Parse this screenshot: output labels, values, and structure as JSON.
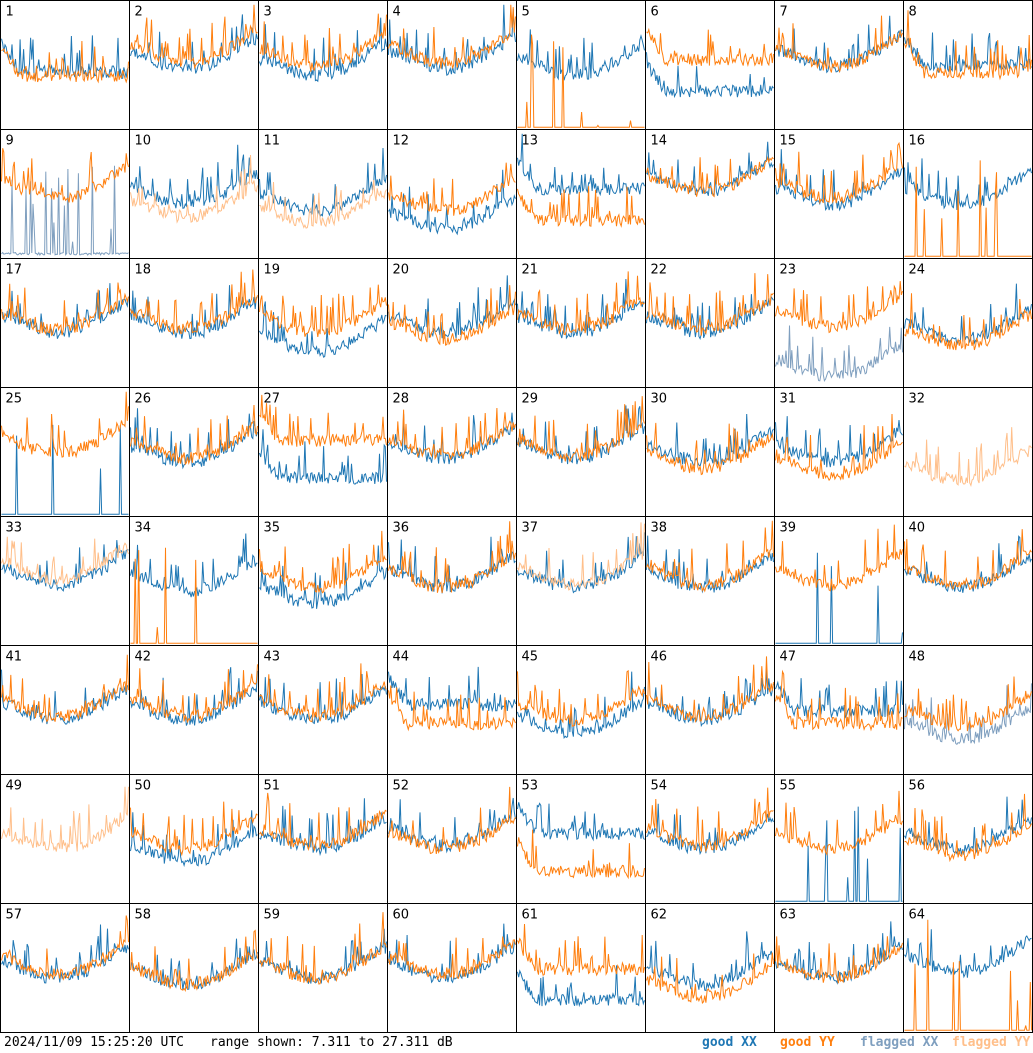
{
  "chart_data": {
    "type": "line",
    "description_units": "dB",
    "range": {
      "min": 7.311,
      "max": 27.311
    },
    "grid": {
      "rows": 8,
      "cols": 8
    },
    "series_colors": {
      "good_xx": "#1f77b4",
      "good_yy": "#ff7f0e",
      "flagged_xx": "#7f9fbf",
      "flagged_yy": "#ffbf8a"
    },
    "panels": [
      {
        "id": "1",
        "xx": "good",
        "yy": "good",
        "xx_level": 0.45,
        "yy_level": 0.42,
        "xx_dip": 0.1,
        "yy_dip": 0.1,
        "shape": "flat"
      },
      {
        "id": "2",
        "xx": "good",
        "yy": "good",
        "xx_level": 0.6,
        "yy_level": 0.65,
        "shape": "u"
      },
      {
        "id": "3",
        "xx": "good",
        "yy": "good",
        "xx_level": 0.55,
        "yy_level": 0.62,
        "shape": "u"
      },
      {
        "id": "4",
        "xx": "good",
        "yy": "good",
        "xx_level": 0.6,
        "yy_level": 0.65,
        "shape": "u"
      },
      {
        "id": "5",
        "xx": "good",
        "yy": "dropout",
        "xx_level": 0.55,
        "yy_level": 0.02,
        "shape": "u"
      },
      {
        "id": "6",
        "xx": "good",
        "yy": "good",
        "xx_level": 0.3,
        "yy_level": 0.55,
        "shape": "flat"
      },
      {
        "id": "7",
        "xx": "good",
        "yy": "good",
        "xx_level": 0.62,
        "yy_level": 0.62,
        "shape": "u"
      },
      {
        "id": "8",
        "xx": "good",
        "yy": "good",
        "xx_level": 0.5,
        "yy_level": 0.45,
        "shape": "flat"
      },
      {
        "id": "9",
        "xx": "flagged",
        "yy": "good",
        "xx_level": 0.03,
        "yy_level": 0.6,
        "shape": "u"
      },
      {
        "id": "10",
        "xx": "good",
        "yy": "flagged",
        "xx_level": 0.55,
        "yy_level": 0.45,
        "shape": "u"
      },
      {
        "id": "11",
        "xx": "good",
        "yy": "flagged",
        "xx_level": 0.5,
        "yy_level": 0.4,
        "shape": "u"
      },
      {
        "id": "12",
        "xx": "good",
        "yy": "good",
        "xx_level": 0.35,
        "yy_level": 0.5,
        "shape": "u"
      },
      {
        "id": "13",
        "xx": "good",
        "yy": "good",
        "xx_level": 0.55,
        "yy_level": 0.3,
        "shape": "flat"
      },
      {
        "id": "14",
        "xx": "good",
        "yy": "good",
        "xx_level": 0.65,
        "yy_level": 0.65,
        "shape": "u"
      },
      {
        "id": "15",
        "xx": "good",
        "yy": "good",
        "xx_level": 0.55,
        "yy_level": 0.6,
        "shape": "u"
      },
      {
        "id": "16",
        "xx": "good",
        "yy": "dropout",
        "xx_level": 0.55,
        "yy_level": 0.02,
        "shape": "u"
      },
      {
        "id": "17",
        "xx": "good",
        "yy": "good",
        "xx_level": 0.55,
        "yy_level": 0.58,
        "shape": "u"
      },
      {
        "id": "18",
        "xx": "good",
        "yy": "good",
        "xx_level": 0.55,
        "yy_level": 0.58,
        "shape": "u"
      },
      {
        "id": "19",
        "xx": "good",
        "yy": "good",
        "xx_level": 0.4,
        "yy_level": 0.55,
        "shape": "u"
      },
      {
        "id": "20",
        "xx": "good",
        "yy": "good",
        "xx_level": 0.55,
        "yy_level": 0.5,
        "shape": "u"
      },
      {
        "id": "21",
        "xx": "good",
        "yy": "good",
        "xx_level": 0.55,
        "yy_level": 0.58,
        "shape": "u"
      },
      {
        "id": "22",
        "xx": "good",
        "yy": "good",
        "xx_level": 0.55,
        "yy_level": 0.58,
        "shape": "u"
      },
      {
        "id": "23",
        "xx": "flagged",
        "yy": "good",
        "xx_level": 0.2,
        "yy_level": 0.6,
        "shape": "u"
      },
      {
        "id": "24",
        "xx": "good",
        "yy": "good",
        "xx_level": 0.5,
        "yy_level": 0.45,
        "shape": "u"
      },
      {
        "id": "25",
        "xx": "dropout",
        "yy": "good",
        "xx_level": 0.02,
        "yy_level": 0.62,
        "shape": "u"
      },
      {
        "id": "26",
        "xx": "good",
        "yy": "good",
        "xx_level": 0.55,
        "yy_level": 0.58,
        "shape": "u"
      },
      {
        "id": "27",
        "xx": "good",
        "yy": "good",
        "xx_level": 0.3,
        "yy_level": 0.6,
        "shape": "flat"
      },
      {
        "id": "28",
        "xx": "good",
        "yy": "good",
        "xx_level": 0.58,
        "yy_level": 0.6,
        "shape": "u"
      },
      {
        "id": "29",
        "xx": "good",
        "yy": "good",
        "xx_level": 0.58,
        "yy_level": 0.6,
        "shape": "u"
      },
      {
        "id": "30",
        "xx": "good",
        "yy": "good",
        "xx_level": 0.55,
        "yy_level": 0.5,
        "shape": "u"
      },
      {
        "id": "31",
        "xx": "good",
        "yy": "good",
        "xx_level": 0.55,
        "yy_level": 0.45,
        "shape": "u"
      },
      {
        "id": "32",
        "xx": "none",
        "yy": "flagged",
        "xx_level": 0,
        "yy_level": 0.4,
        "shape": "u"
      },
      {
        "id": "33",
        "xx": "good",
        "yy": "flagged",
        "xx_level": 0.6,
        "yy_level": 0.65,
        "shape": "u"
      },
      {
        "id": "34",
        "xx": "good",
        "yy": "dropout",
        "xx_level": 0.55,
        "yy_level": 0.02,
        "shape": "u"
      },
      {
        "id": "35",
        "xx": "good",
        "yy": "good",
        "xx_level": 0.45,
        "yy_level": 0.58,
        "shape": "u"
      },
      {
        "id": "36",
        "xx": "good",
        "yy": "good",
        "xx_level": 0.58,
        "yy_level": 0.58,
        "shape": "u"
      },
      {
        "id": "37",
        "xx": "good",
        "yy": "flagged",
        "xx_level": 0.58,
        "yy_level": 0.6,
        "shape": "u"
      },
      {
        "id": "38",
        "xx": "good",
        "yy": "good",
        "xx_level": 0.58,
        "yy_level": 0.6,
        "shape": "u"
      },
      {
        "id": "39",
        "xx": "dropout",
        "yy": "good",
        "xx_level": 0.02,
        "yy_level": 0.6,
        "shape": "u"
      },
      {
        "id": "40",
        "xx": "good",
        "yy": "good",
        "xx_level": 0.58,
        "yy_level": 0.6,
        "shape": "u"
      },
      {
        "id": "41",
        "xx": "good",
        "yy": "good",
        "xx_level": 0.55,
        "yy_level": 0.58,
        "shape": "u"
      },
      {
        "id": "42",
        "xx": "good",
        "yy": "good",
        "xx_level": 0.55,
        "yy_level": 0.58,
        "shape": "u"
      },
      {
        "id": "43",
        "xx": "good",
        "yy": "good",
        "xx_level": 0.55,
        "yy_level": 0.58,
        "shape": "u"
      },
      {
        "id": "44",
        "xx": "good",
        "yy": "good",
        "xx_level": 0.55,
        "yy_level": 0.4,
        "shape": "flat"
      },
      {
        "id": "45",
        "xx": "good",
        "yy": "good",
        "xx_level": 0.45,
        "yy_level": 0.55,
        "shape": "u"
      },
      {
        "id": "46",
        "xx": "good",
        "yy": "good",
        "xx_level": 0.55,
        "yy_level": 0.58,
        "shape": "u"
      },
      {
        "id": "47",
        "xx": "good",
        "yy": "good",
        "xx_level": 0.5,
        "yy_level": 0.4,
        "shape": "flat"
      },
      {
        "id": "48",
        "xx": "flagged",
        "yy": "good",
        "xx_level": 0.4,
        "yy_level": 0.5,
        "shape": "u"
      },
      {
        "id": "49",
        "xx": "none",
        "yy": "flagged",
        "xx_level": 0,
        "yy_level": 0.55,
        "shape": "u"
      },
      {
        "id": "50",
        "xx": "good",
        "yy": "good",
        "xx_level": 0.45,
        "yy_level": 0.55,
        "shape": "u"
      },
      {
        "id": "51",
        "xx": "good",
        "yy": "good",
        "xx_level": 0.55,
        "yy_level": 0.58,
        "shape": "u"
      },
      {
        "id": "52",
        "xx": "good",
        "yy": "good",
        "xx_level": 0.58,
        "yy_level": 0.55,
        "shape": "u"
      },
      {
        "id": "53",
        "xx": "good",
        "yy": "good",
        "xx_level": 0.55,
        "yy_level": 0.25,
        "shape": "flat"
      },
      {
        "id": "54",
        "xx": "good",
        "yy": "good",
        "xx_level": 0.55,
        "yy_level": 0.58,
        "shape": "u"
      },
      {
        "id": "55",
        "xx": "dropout",
        "yy": "good",
        "xx_level": 0.02,
        "yy_level": 0.55,
        "shape": "u"
      },
      {
        "id": "56",
        "xx": "good",
        "yy": "good",
        "xx_level": 0.55,
        "yy_level": 0.5,
        "shape": "u"
      },
      {
        "id": "57",
        "xx": "good",
        "yy": "good",
        "xx_level": 0.55,
        "yy_level": 0.58,
        "shape": "u"
      },
      {
        "id": "58",
        "xx": "good",
        "yy": "good",
        "xx_level": 0.5,
        "yy_level": 0.5,
        "shape": "u"
      },
      {
        "id": "59",
        "xx": "good",
        "yy": "good",
        "xx_level": 0.55,
        "yy_level": 0.55,
        "shape": "u"
      },
      {
        "id": "60",
        "xx": "good",
        "yy": "good",
        "xx_level": 0.55,
        "yy_level": 0.58,
        "shape": "u"
      },
      {
        "id": "61",
        "xx": "good",
        "yy": "good",
        "xx_level": 0.25,
        "yy_level": 0.5,
        "shape": "flat"
      },
      {
        "id": "62",
        "xx": "good",
        "yy": "good",
        "xx_level": 0.5,
        "yy_level": 0.4,
        "shape": "u"
      },
      {
        "id": "63",
        "xx": "good",
        "yy": "good",
        "xx_level": 0.55,
        "yy_level": 0.55,
        "shape": "u"
      },
      {
        "id": "64",
        "xx": "good",
        "yy": "dropout",
        "xx_level": 0.6,
        "yy_level": 0.02,
        "shape": "u"
      }
    ]
  },
  "footer": {
    "timestamp": "2024/11/09 15:25:20 UTC",
    "range_text": "range shown: 7.311 to 27.311 dB",
    "legend": [
      {
        "label": "good XX",
        "color": "#1f77b4"
      },
      {
        "label": "good YY",
        "color": "#ff7f0e"
      },
      {
        "label": "flagged XX",
        "color": "#7f9fbf"
      },
      {
        "label": "flagged YY",
        "color": "#ffbf8a"
      }
    ]
  }
}
